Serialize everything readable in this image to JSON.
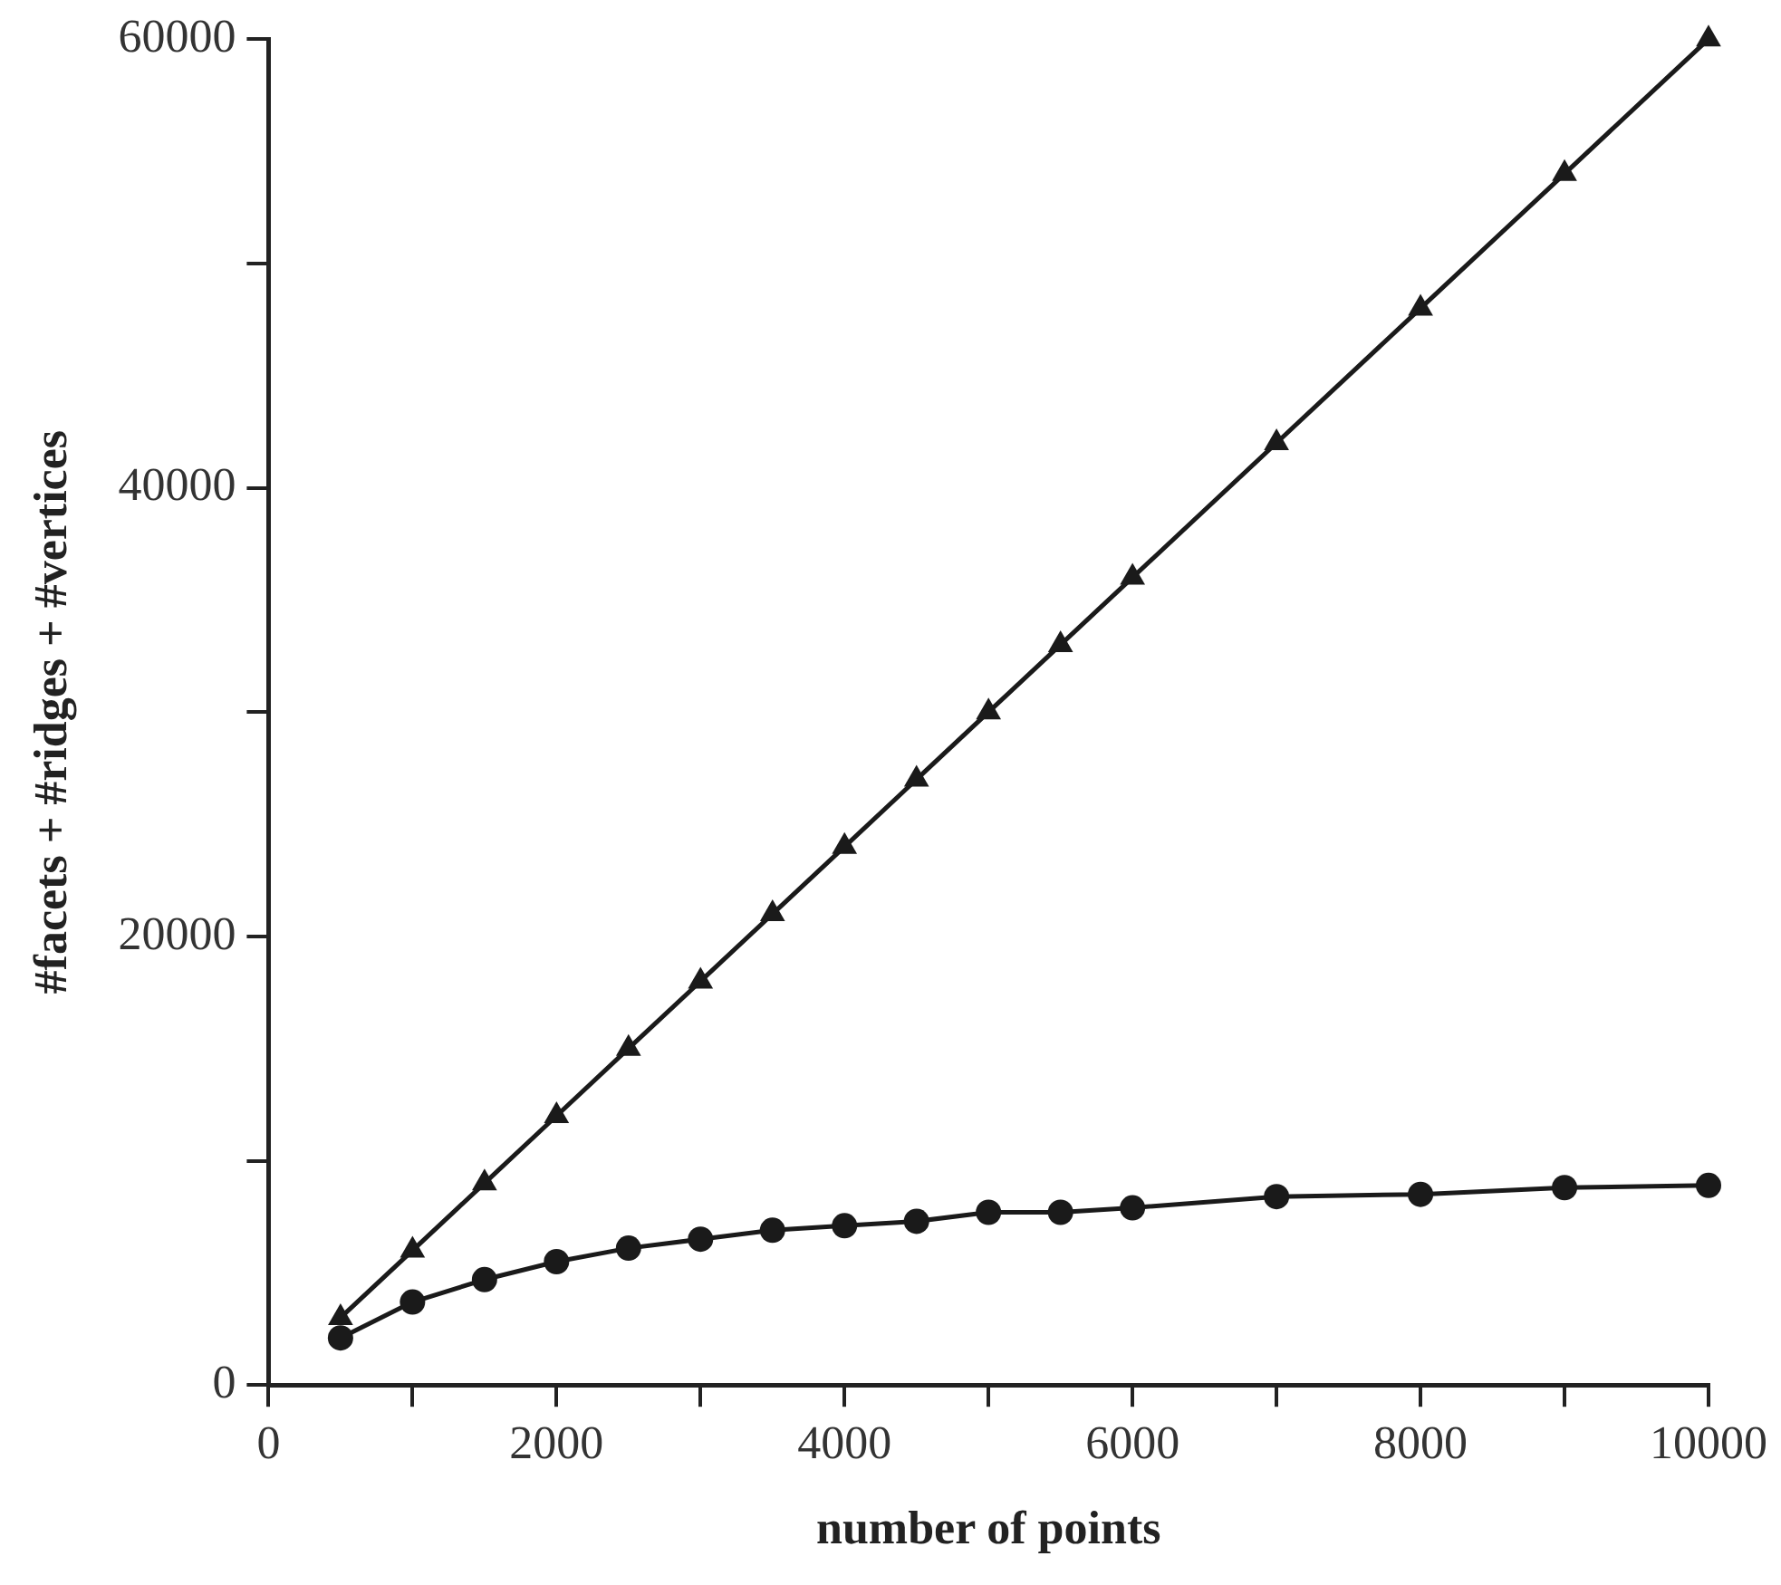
{
  "chart_data": {
    "type": "line",
    "xlabel": "number of points",
    "ylabel": "#facets + #ridges + #vertices",
    "x": [
      500,
      1000,
      1500,
      2000,
      2500,
      3000,
      3500,
      4000,
      4500,
      5000,
      5500,
      6000,
      7000,
      8000,
      9000,
      10000
    ],
    "series": [
      {
        "color": "#1a1a1a",
        "marker": "triangle",
        "values": [
          3000,
          6000,
          9000,
          12000,
          15000,
          18000,
          21000,
          24000,
          27000,
          30000,
          33000,
          36000,
          42000,
          48000,
          54000,
          60000
        ]
      },
      {
        "color": "#1a1a1a",
        "marker": "circle",
        "values": [
          2100,
          3700,
          4700,
          5500,
          6100,
          6500,
          6900,
          7100,
          7300,
          7700,
          7700,
          7900,
          8400,
          8500,
          8800,
          8900
        ]
      }
    ],
    "xlim": [
      0,
      10000
    ],
    "xticks": [
      0,
      {
        "value": 1000,
        "label": null
      },
      2000,
      {
        "value": 3000,
        "label": null
      },
      4000,
      {
        "value": 5000,
        "label": null
      },
      6000,
      {
        "value": 7000,
        "label": null
      },
      8000,
      {
        "value": 9000,
        "label": null
      },
      10000
    ],
    "ylim": [
      0,
      60000
    ],
    "yticks": [
      0,
      {
        "value": 10000,
        "label": null
      },
      20000,
      {
        "value": 30000,
        "label": null
      },
      40000,
      {
        "value": 50000,
        "label": null
      },
      60000
    ],
    "grid": false,
    "legend": false,
    "line_style": "solid"
  }
}
